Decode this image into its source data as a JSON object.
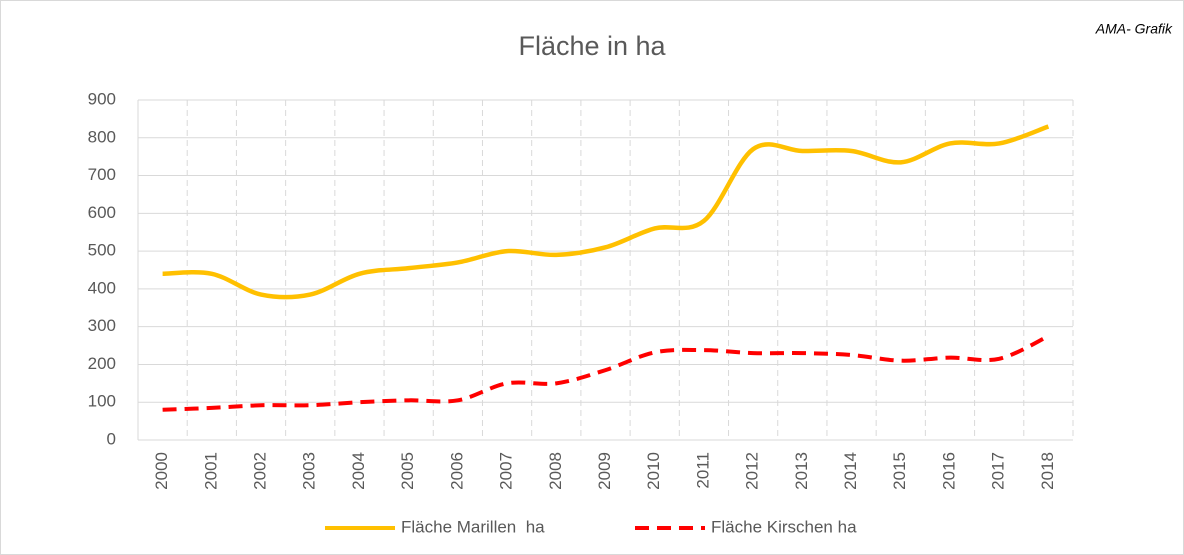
{
  "chart_data": {
    "type": "line",
    "title": "Fläche in ha",
    "annotation": "AMA- Grafik",
    "categories": [
      "2000",
      "2001",
      "2002",
      "2003",
      "2004",
      "2005",
      "2006",
      "2007",
      "2008",
      "2009",
      "2010",
      "2011",
      "2012",
      "2013",
      "2014",
      "2015",
      "2016",
      "2017",
      "2018"
    ],
    "series": [
      {
        "name": "Fläche Marillen  ha",
        "color": "#ffc000",
        "dashed": false,
        "values": [
          440,
          440,
          385,
          385,
          440,
          455,
          470,
          500,
          490,
          510,
          560,
          580,
          770,
          765,
          765,
          735,
          785,
          785,
          830
        ]
      },
      {
        "name": "Fläche Kirschen ha",
        "color": "#ff0000",
        "dashed": true,
        "values": [
          80,
          85,
          92,
          92,
          100,
          105,
          105,
          150,
          150,
          185,
          232,
          238,
          230,
          230,
          225,
          210,
          218,
          215,
          275
        ]
      }
    ],
    "ylim": [
      0,
      900
    ],
    "yticks": [
      0,
      100,
      200,
      300,
      400,
      500,
      600,
      700,
      800,
      900
    ],
    "grid": true,
    "legend": "bottom"
  }
}
